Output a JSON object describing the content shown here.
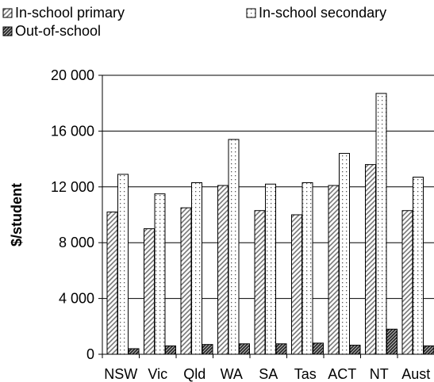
{
  "chart_data": {
    "type": "bar",
    "title": "",
    "xlabel": "",
    "ylabel": "$/student",
    "ylim": [
      0,
      20000
    ],
    "yticks": [
      0,
      4000,
      8000,
      12000,
      16000,
      20000
    ],
    "ytick_labels": [
      "0",
      "4 000",
      "8 000",
      "12 000",
      "16 000",
      "20 000"
    ],
    "categories": [
      "NSW",
      "Vic",
      "Qld",
      "WA",
      "SA",
      "Tas",
      "ACT",
      "NT",
      "Aust"
    ],
    "grid": true,
    "legend_placement": "top",
    "series": [
      {
        "name": "In-school primary",
        "pattern": "diagonal-hatch",
        "values": [
          10200,
          9000,
          10500,
          12100,
          10300,
          10000,
          12100,
          13600,
          10300
        ]
      },
      {
        "name": "In-school secondary",
        "pattern": "dotted",
        "values": [
          12900,
          11500,
          12300,
          15400,
          12200,
          12300,
          14400,
          18700,
          12700
        ]
      },
      {
        "name": "Out-of-school",
        "pattern": "dense-diagonal-hatch",
        "values": [
          400,
          600,
          700,
          750,
          750,
          800,
          650,
          1800,
          600
        ]
      }
    ]
  }
}
